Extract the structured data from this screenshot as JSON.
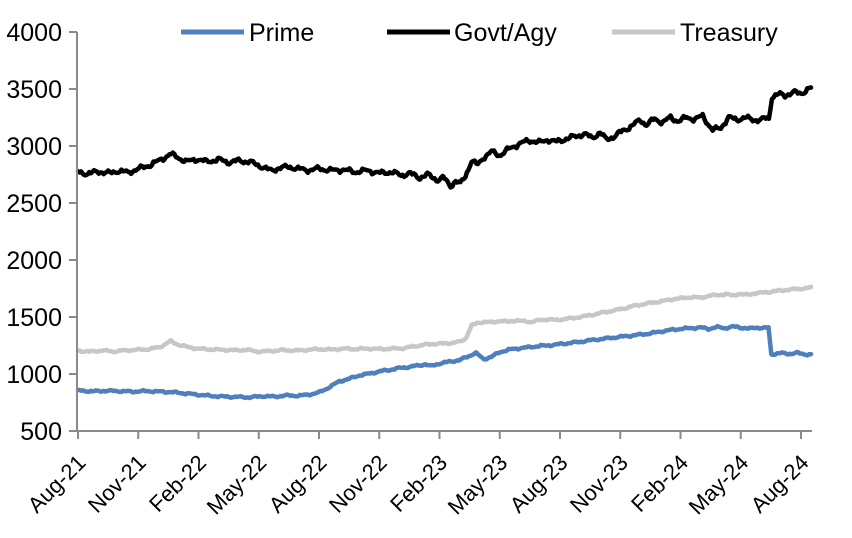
{
  "chart_data": {
    "type": "line",
    "title": "",
    "x_axis": {
      "unit": "month index from Aug-21",
      "tick_labels": [
        "Aug-21",
        "Nov-21",
        "Feb-22",
        "May-22",
        "Aug-22",
        "Nov-22",
        "Feb-23",
        "May-23",
        "Aug-23",
        "Nov-23",
        "Feb-24",
        "May-24",
        "Aug-24"
      ],
      "tick_month_index": [
        0,
        3,
        6,
        9,
        12,
        15,
        18,
        21,
        24,
        27,
        30,
        33,
        36
      ]
    },
    "y_axis": {
      "min": 500,
      "max": 4000,
      "tick_step": 500,
      "ticks": [
        500,
        1000,
        1500,
        2000,
        2500,
        3000,
        3500,
        4000
      ]
    },
    "legend": {
      "position": "top",
      "entries": [
        "Prime",
        "Govt/Agy",
        "Treasury"
      ]
    },
    "grid": "off",
    "axis_color": "#8a8a8a",
    "text_color": "#000000",
    "series": [
      {
        "name": "Prime",
        "color": "#4d80bc",
        "points": [
          [
            0,
            855
          ],
          [
            0.7,
            848
          ],
          [
            1.4,
            853
          ],
          [
            2,
            850
          ],
          [
            2.7,
            846
          ],
          [
            3.4,
            850
          ],
          [
            4,
            846
          ],
          [
            4.6,
            842
          ],
          [
            5.2,
            832
          ],
          [
            6,
            818
          ],
          [
            6.6,
            808
          ],
          [
            7.2,
            802
          ],
          [
            8,
            798
          ],
          [
            8.6,
            796
          ],
          [
            9.2,
            806
          ],
          [
            9.8,
            801
          ],
          [
            10.4,
            812
          ],
          [
            11,
            809
          ],
          [
            11.6,
            822
          ],
          [
            12,
            838
          ],
          [
            12.5,
            882
          ],
          [
            13,
            935
          ],
          [
            13.5,
            958
          ],
          [
            14,
            988
          ],
          [
            14.5,
            1003
          ],
          [
            15,
            1022
          ],
          [
            15.5,
            1036
          ],
          [
            16,
            1052
          ],
          [
            16.5,
            1062
          ],
          [
            17,
            1076
          ],
          [
            17.3,
            1086
          ],
          [
            17.55,
            1068
          ],
          [
            18,
            1092
          ],
          [
            18.5,
            1108
          ],
          [
            19,
            1122
          ],
          [
            19.4,
            1152
          ],
          [
            19.8,
            1185
          ],
          [
            20.2,
            1130
          ],
          [
            20.6,
            1152
          ],
          [
            21,
            1192
          ],
          [
            21.5,
            1215
          ],
          [
            22,
            1226
          ],
          [
            22.5,
            1236
          ],
          [
            23,
            1246
          ],
          [
            23.5,
            1252
          ],
          [
            24,
            1262
          ],
          [
            24.5,
            1272
          ],
          [
            25,
            1282
          ],
          [
            25.5,
            1296
          ],
          [
            26,
            1306
          ],
          [
            26.5,
            1316
          ],
          [
            27,
            1326
          ],
          [
            27.5,
            1336
          ],
          [
            28,
            1346
          ],
          [
            28.5,
            1356
          ],
          [
            29,
            1372
          ],
          [
            29.5,
            1386
          ],
          [
            30,
            1396
          ],
          [
            30.5,
            1402
          ],
          [
            31,
            1408
          ],
          [
            31.4,
            1396
          ],
          [
            31.8,
            1412
          ],
          [
            32.2,
            1402
          ],
          [
            32.6,
            1416
          ],
          [
            33,
            1408
          ],
          [
            33.4,
            1398
          ],
          [
            33.8,
            1408
          ],
          [
            34.1,
            1402
          ],
          [
            34.38,
            1406
          ],
          [
            34.52,
            1172
          ],
          [
            35,
            1184
          ],
          [
            35.4,
            1176
          ],
          [
            35.8,
            1186
          ],
          [
            36.1,
            1174
          ],
          [
            36.5,
            1170
          ]
        ]
      },
      {
        "name": "Govt/Agy",
        "color": "#000000",
        "points": [
          [
            0,
            2772
          ],
          [
            0.5,
            2756
          ],
          [
            1,
            2778
          ],
          [
            1.5,
            2760
          ],
          [
            2,
            2782
          ],
          [
            2.5,
            2768
          ],
          [
            3,
            2800
          ],
          [
            3.5,
            2826
          ],
          [
            4,
            2868
          ],
          [
            4.6,
            2930
          ],
          [
            5,
            2898
          ],
          [
            5.4,
            2862
          ],
          [
            5.9,
            2885
          ],
          [
            6.4,
            2862
          ],
          [
            7,
            2882
          ],
          [
            7.5,
            2856
          ],
          [
            8,
            2872
          ],
          [
            8.6,
            2858
          ],
          [
            9.2,
            2815
          ],
          [
            9.6,
            2784
          ],
          [
            10,
            2806
          ],
          [
            10.5,
            2818
          ],
          [
            11,
            2798
          ],
          [
            11.5,
            2788
          ],
          [
            12,
            2802
          ],
          [
            12.6,
            2786
          ],
          [
            13.2,
            2792
          ],
          [
            13.8,
            2772
          ],
          [
            14.4,
            2786
          ],
          [
            15,
            2762
          ],
          [
            15.6,
            2772
          ],
          [
            16.1,
            2742
          ],
          [
            16.5,
            2762
          ],
          [
            17,
            2722
          ],
          [
            17.4,
            2748
          ],
          [
            17.9,
            2702
          ],
          [
            18.2,
            2722
          ],
          [
            18.55,
            2650
          ],
          [
            18.8,
            2692
          ],
          [
            19.05,
            2668
          ],
          [
            19.3,
            2742
          ],
          [
            19.6,
            2870
          ],
          [
            19.9,
            2834
          ],
          [
            20.2,
            2902
          ],
          [
            20.6,
            2950
          ],
          [
            21,
            2918
          ],
          [
            21.4,
            2968
          ],
          [
            22,
            3022
          ],
          [
            22.5,
            3050
          ],
          [
            23,
            3030
          ],
          [
            23.4,
            3056
          ],
          [
            23.8,
            3036
          ],
          [
            24.3,
            3062
          ],
          [
            24.8,
            3086
          ],
          [
            25.2,
            3106
          ],
          [
            25.6,
            3072
          ],
          [
            26,
            3118
          ],
          [
            26.3,
            3056
          ],
          [
            26.7,
            3084
          ],
          [
            27.1,
            3130
          ],
          [
            27.5,
            3168
          ],
          [
            28,
            3228
          ],
          [
            28.3,
            3186
          ],
          [
            28.7,
            3236
          ],
          [
            29.1,
            3208
          ],
          [
            29.5,
            3248
          ],
          [
            29.9,
            3218
          ],
          [
            30.3,
            3250
          ],
          [
            30.7,
            3236
          ],
          [
            31.1,
            3262
          ],
          [
            31.6,
            3140
          ],
          [
            32,
            3158
          ],
          [
            32.4,
            3252
          ],
          [
            32.8,
            3230
          ],
          [
            33.2,
            3250
          ],
          [
            33.6,
            3230
          ],
          [
            34,
            3228
          ],
          [
            34.2,
            3242
          ],
          [
            34.4,
            3240
          ],
          [
            34.55,
            3430
          ],
          [
            34.9,
            3456
          ],
          [
            35.2,
            3442
          ],
          [
            35.6,
            3472
          ],
          [
            36,
            3460
          ],
          [
            36.3,
            3494
          ],
          [
            36.5,
            3512
          ]
        ]
      },
      {
        "name": "Treasury",
        "color": "#c7c7c7",
        "points": [
          [
            0,
            1205
          ],
          [
            0.6,
            1196
          ],
          [
            1.2,
            1206
          ],
          [
            1.8,
            1198
          ],
          [
            2.4,
            1208
          ],
          [
            3,
            1212
          ],
          [
            3.6,
            1220
          ],
          [
            4.1,
            1238
          ],
          [
            4.6,
            1288
          ],
          [
            5,
            1258
          ],
          [
            5.5,
            1235
          ],
          [
            6,
            1222
          ],
          [
            6.6,
            1216
          ],
          [
            7.2,
            1212
          ],
          [
            7.8,
            1208
          ],
          [
            8.4,
            1212
          ],
          [
            9,
            1196
          ],
          [
            9.6,
            1202
          ],
          [
            10.2,
            1210
          ],
          [
            10.8,
            1205
          ],
          [
            11.4,
            1212
          ],
          [
            12,
            1218
          ],
          [
            12.6,
            1214
          ],
          [
            13.2,
            1222
          ],
          [
            13.8,
            1218
          ],
          [
            14.4,
            1223
          ],
          [
            15,
            1219
          ],
          [
            15.6,
            1222
          ],
          [
            16.2,
            1226
          ],
          [
            16.7,
            1242
          ],
          [
            17,
            1250
          ],
          [
            17.5,
            1262
          ],
          [
            18,
            1266
          ],
          [
            18.5,
            1270
          ],
          [
            19,
            1282
          ],
          [
            19.3,
            1310
          ],
          [
            19.6,
            1425
          ],
          [
            19.9,
            1448
          ],
          [
            20.2,
            1458
          ],
          [
            20.6,
            1452
          ],
          [
            21,
            1466
          ],
          [
            21.4,
            1458
          ],
          [
            21.8,
            1470
          ],
          [
            22.2,
            1462
          ],
          [
            22.6,
            1458
          ],
          [
            23,
            1472
          ],
          [
            23.4,
            1480
          ],
          [
            23.8,
            1472
          ],
          [
            24.2,
            1482
          ],
          [
            24.7,
            1492
          ],
          [
            25.2,
            1506
          ],
          [
            25.7,
            1522
          ],
          [
            26.2,
            1542
          ],
          [
            26.7,
            1558
          ],
          [
            27.2,
            1576
          ],
          [
            27.7,
            1598
          ],
          [
            28.2,
            1615
          ],
          [
            28.7,
            1628
          ],
          [
            29.2,
            1642
          ],
          [
            29.7,
            1658
          ],
          [
            30.2,
            1668
          ],
          [
            30.6,
            1675
          ],
          [
            31,
            1668
          ],
          [
            31.4,
            1686
          ],
          [
            31.9,
            1694
          ],
          [
            32.3,
            1700
          ],
          [
            32.6,
            1688
          ],
          [
            32.9,
            1702
          ],
          [
            33.3,
            1694
          ],
          [
            33.7,
            1708
          ],
          [
            34.1,
            1714
          ],
          [
            34.5,
            1722
          ],
          [
            34.9,
            1730
          ],
          [
            35.3,
            1738
          ],
          [
            35.7,
            1744
          ],
          [
            36.1,
            1750
          ],
          [
            36.5,
            1756
          ]
        ]
      }
    ]
  }
}
